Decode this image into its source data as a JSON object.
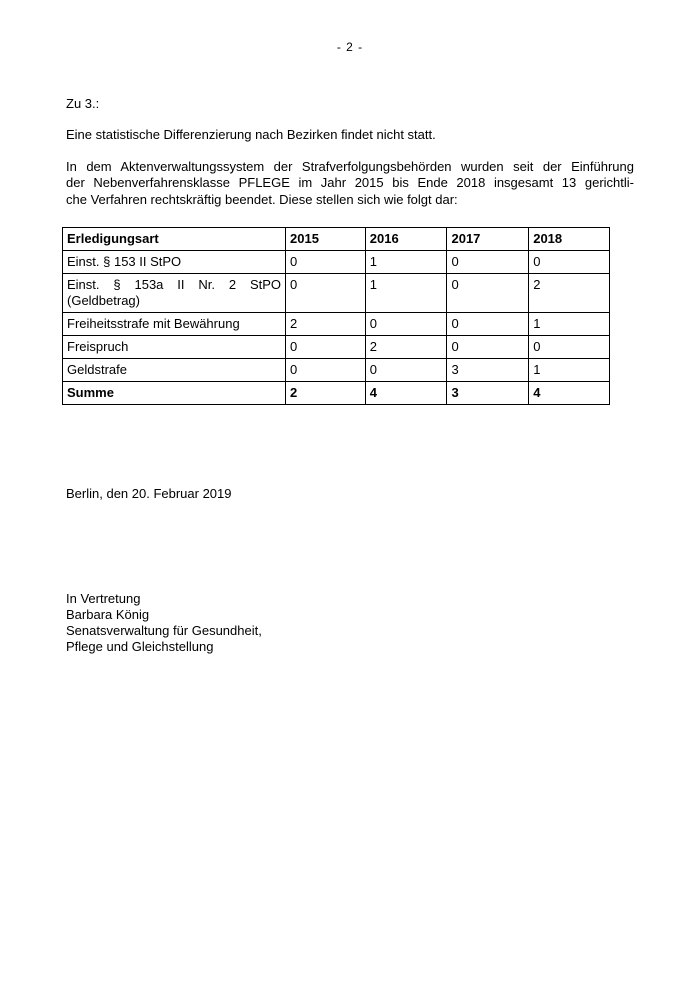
{
  "page": {
    "number_label": "- 2 -"
  },
  "content": {
    "section_heading": "Zu 3.:",
    "statement": "Eine statistische Differenzierung nach Bezirken findet nicht statt.",
    "paragraph_lines": [
      "In dem Aktenverwaltungssystem der Strafverfolgungsbehörden wurden seit der Einführung",
      "der Nebenverfahrensklasse PFLEGE im Jahr 2015 bis Ende 2018 insgesamt 13 gerichtli-",
      "che Verfahren rechtskräftig beendet. Diese stellen sich wie folgt dar:"
    ]
  },
  "table": {
    "headers": [
      "Erledigungsart",
      "2015",
      "2016",
      "2017",
      "2018"
    ],
    "rows": [
      {
        "label": "Einst. § 153 II StPO",
        "values": [
          "0",
          "1",
          "0",
          "0"
        ]
      },
      {
        "label": "Einst. § 153a II Nr. 2 StPO",
        "label2": "(Geldbetrag)",
        "values": [
          "0",
          "1",
          "0",
          "2"
        ]
      },
      {
        "label": "Freiheitsstrafe mit Bewährung",
        "values": [
          "2",
          "0",
          "0",
          "1"
        ]
      },
      {
        "label": "Freispruch",
        "values": [
          "0",
          "2",
          "0",
          "0"
        ]
      },
      {
        "label": "Geldstrafe",
        "values": [
          "0",
          "0",
          "3",
          "1"
        ]
      }
    ],
    "summary": {
      "label": "Summe",
      "values": [
        "2",
        "4",
        "3",
        "4"
      ]
    }
  },
  "footer": {
    "place_date": "Berlin, den 20. Februar 2019",
    "signature_lines": [
      "In Vertretung",
      "Barbara König",
      "Senatsverwaltung für Gesundheit,",
      "Pflege und Gleichstellung"
    ]
  }
}
